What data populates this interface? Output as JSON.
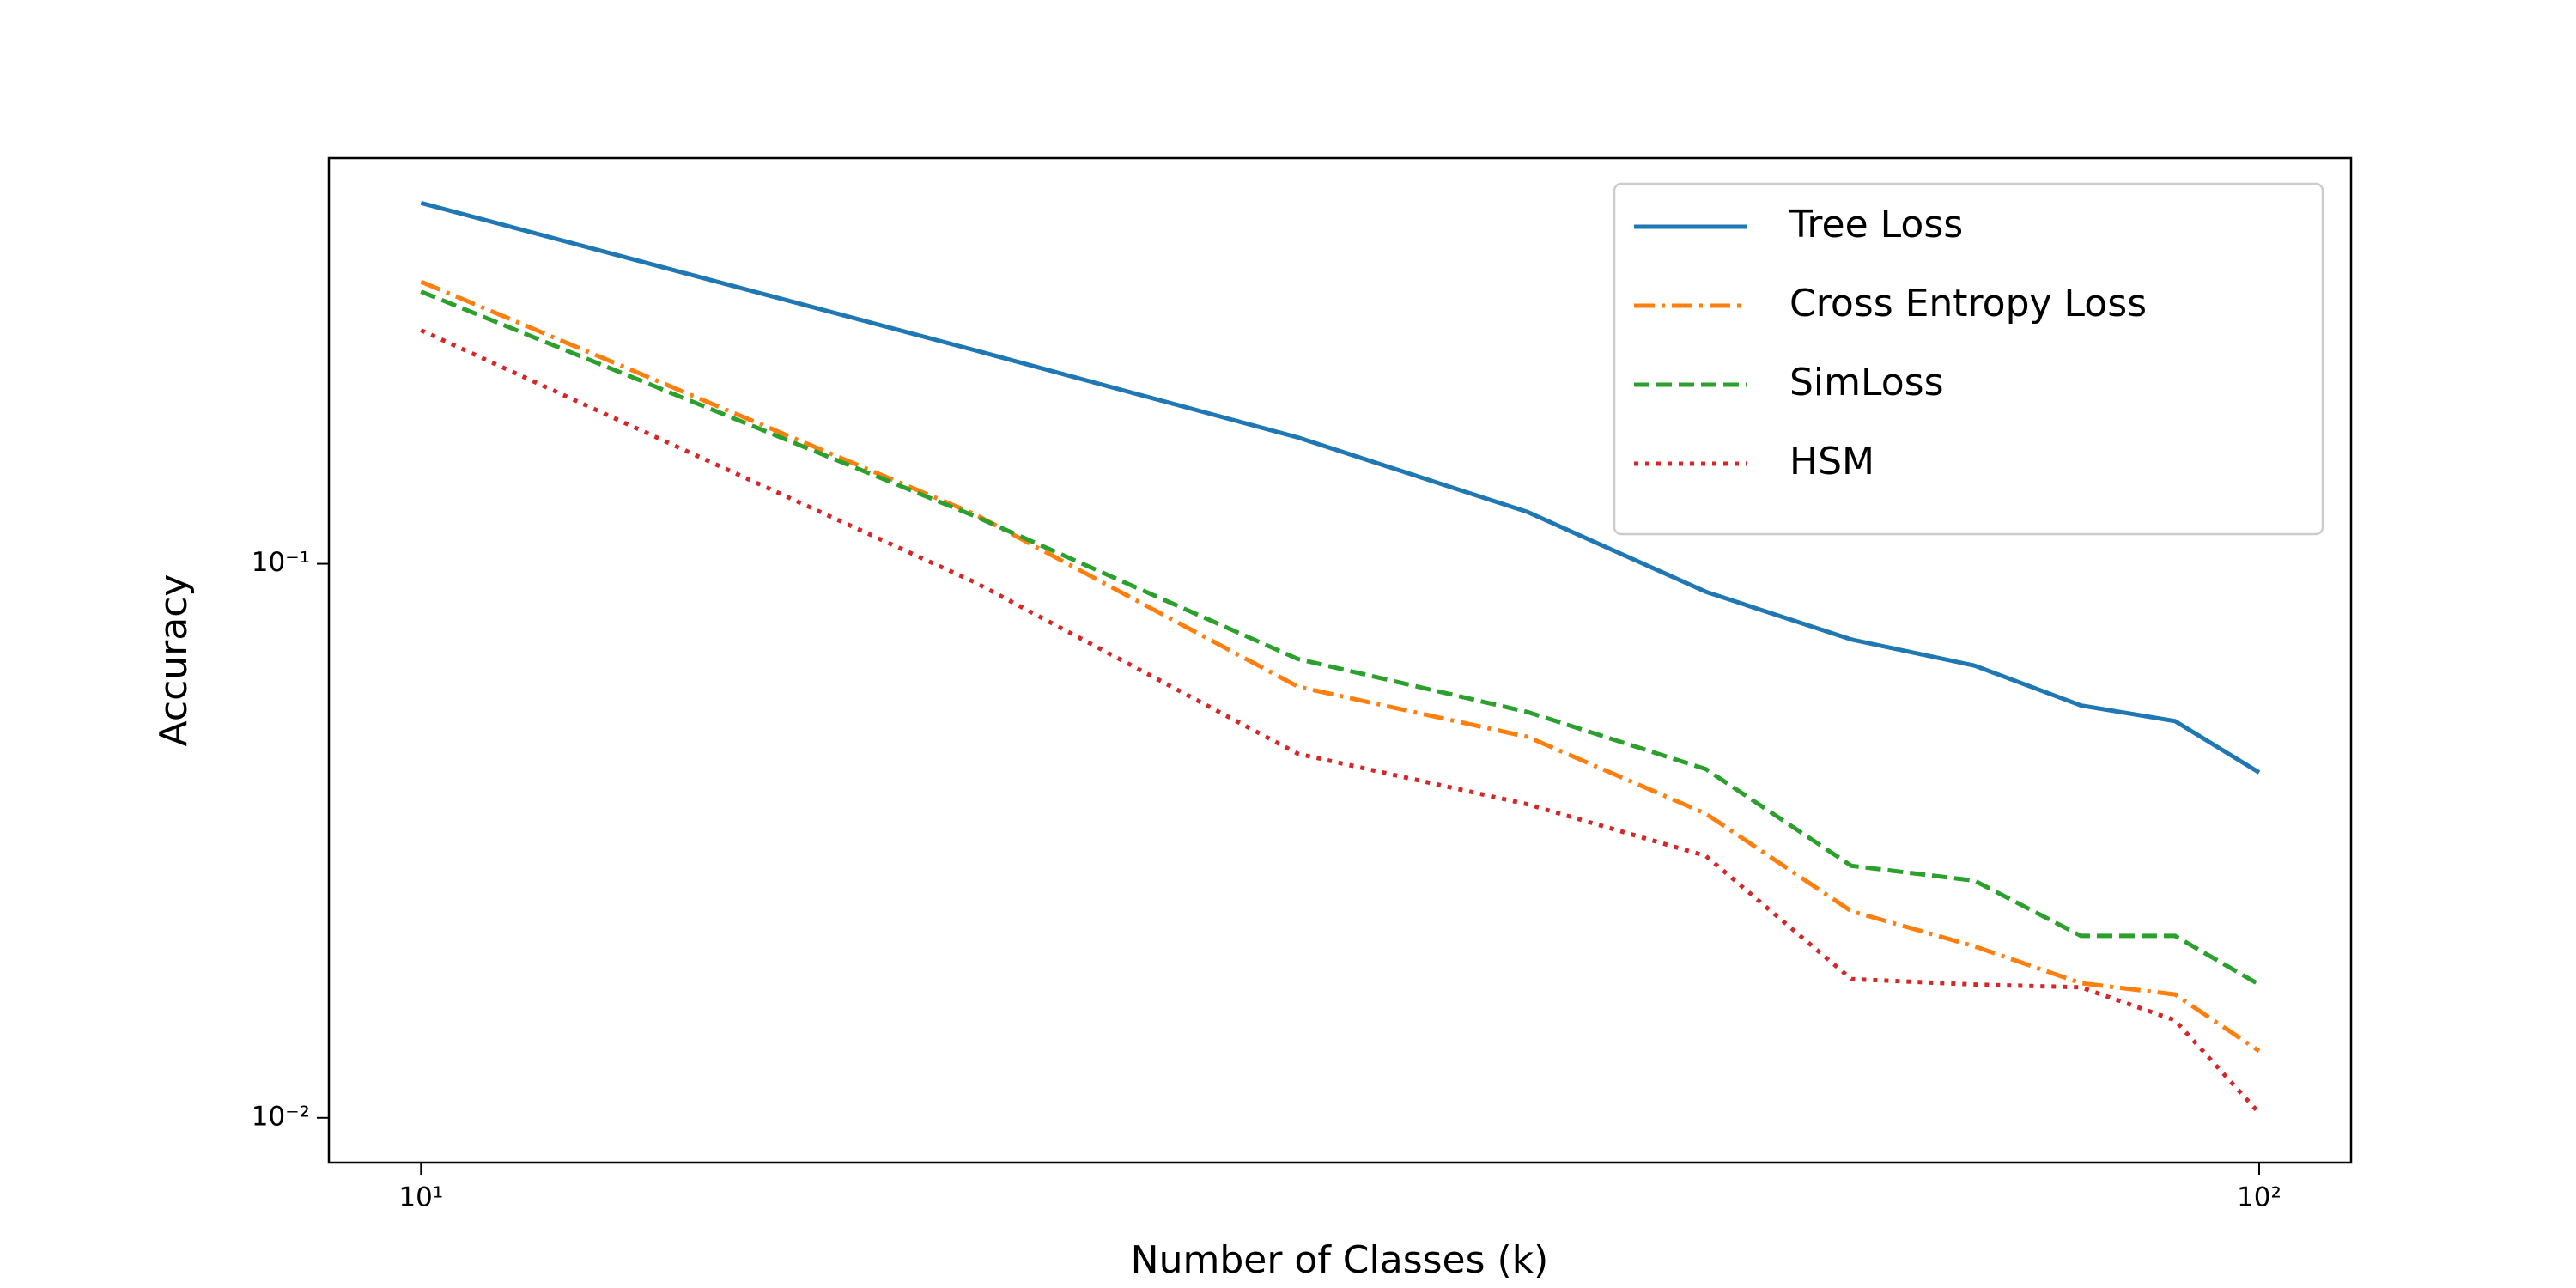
{
  "chart_data": {
    "type": "line",
    "xlabel": "Number of Classes (k)",
    "ylabel": "Accuracy",
    "xscale": "log",
    "yscale": "log",
    "x": [
      10,
      20,
      30,
      40,
      50,
      60,
      70,
      80,
      90,
      100
    ],
    "series": [
      {
        "name": "Tree Loss",
        "color": "#1f77b4",
        "linestyle": "solid",
        "values": [
          0.448,
          0.243,
          0.169,
          0.124,
          0.089,
          0.073,
          0.0655,
          0.0555,
          0.052,
          0.042
        ]
      },
      {
        "name": "Cross Entropy Loss",
        "color": "#ff7f0e",
        "linestyle": "dashdot",
        "values": [
          0.323,
          0.123,
          0.06,
          0.0487,
          0.0354,
          0.0236,
          0.0204,
          0.0175,
          0.0167,
          0.0132
        ]
      },
      {
        "name": "SimLoss",
        "color": "#2ca02c",
        "linestyle": "dashed",
        "values": [
          0.31,
          0.122,
          0.0673,
          0.054,
          0.0426,
          0.0285,
          0.0268,
          0.0213,
          0.0213,
          0.0174
        ]
      },
      {
        "name": "HSM",
        "color": "#d62728",
        "linestyle": "dotted",
        "values": [
          0.264,
          0.0927,
          0.0454,
          0.0368,
          0.0297,
          0.0178,
          0.0174,
          0.0172,
          0.015,
          0.0102
        ]
      }
    ],
    "xlim": [
      8.91,
      112.2
    ],
    "ylim": [
      0.0083,
      0.54
    ],
    "xticks": [
      {
        "value": 10,
        "label": "10¹"
      },
      {
        "value": 100,
        "label": "10²"
      }
    ],
    "yticks": [
      {
        "value": 0.01,
        "label": "10⁻²"
      },
      {
        "value": 0.1,
        "label": "10⁻¹"
      }
    ],
    "legend": "upper right"
  }
}
